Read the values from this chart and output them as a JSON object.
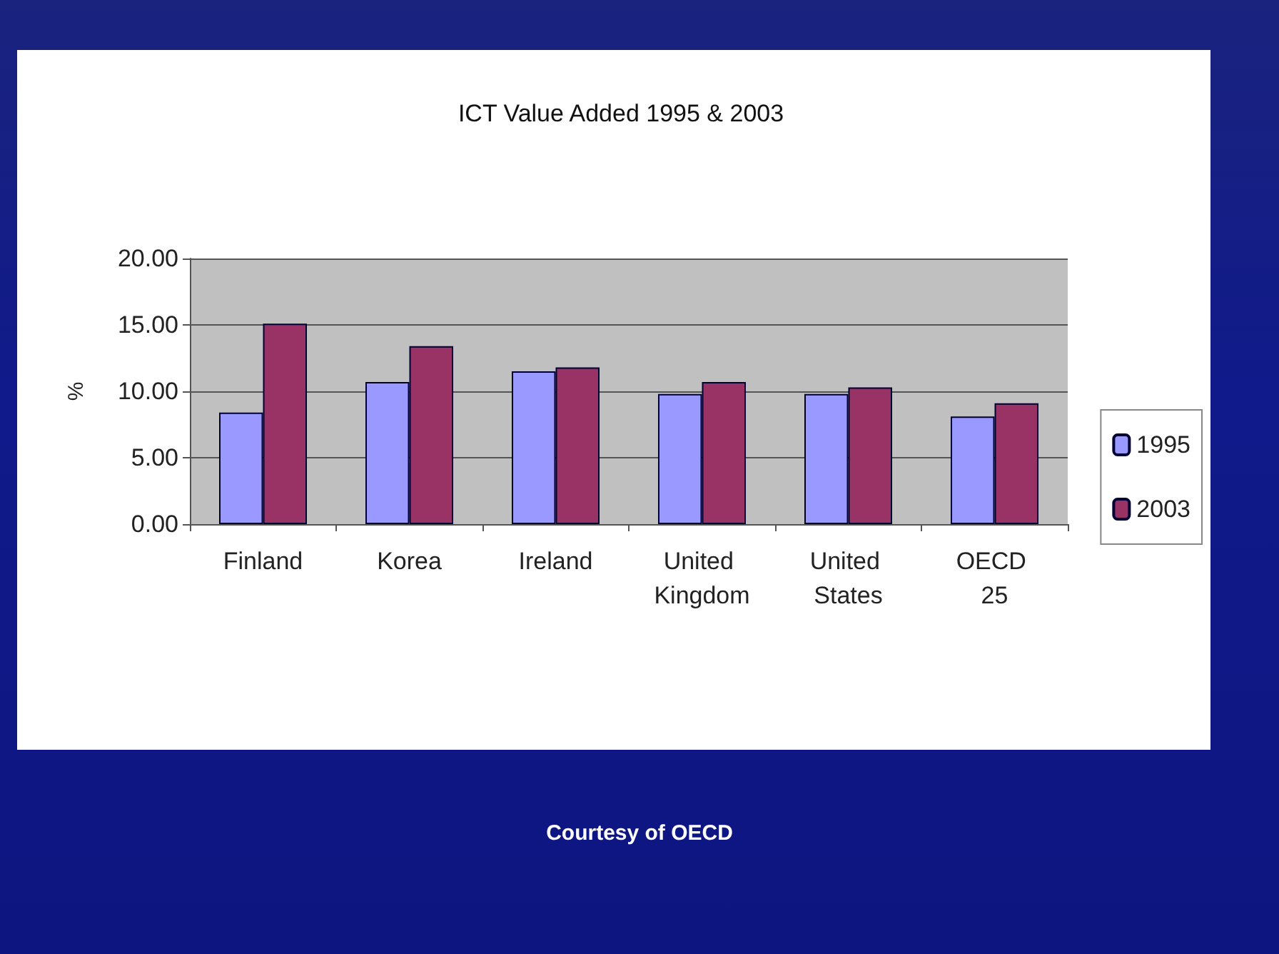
{
  "chart_data": {
    "type": "bar",
    "title": "ICT Value Added 1995 & 2003",
    "ylabel": "%",
    "categories": [
      "Finland",
      "Korea",
      "Ireland",
      "United Kingdom",
      "United States",
      "OECD 25"
    ],
    "series": [
      {
        "name": "1995",
        "color": "#9999ff",
        "values": [
          8.4,
          10.7,
          11.5,
          9.8,
          9.8,
          8.1
        ]
      },
      {
        "name": "2003",
        "color": "#993366",
        "values": [
          15.1,
          13.4,
          11.8,
          10.7,
          10.3,
          9.1
        ]
      }
    ],
    "ylim": [
      0,
      20
    ],
    "yticks": [
      {
        "value": 0,
        "label": "0.00"
      },
      {
        "value": 5,
        "label": "5.00"
      },
      {
        "value": 10,
        "label": "10.00"
      },
      {
        "value": 15,
        "label": "15.00"
      },
      {
        "value": 20,
        "label": "20.00"
      }
    ],
    "grid": "y",
    "legend": "right",
    "annotations": [
      "Courtesy of OECD"
    ]
  }
}
